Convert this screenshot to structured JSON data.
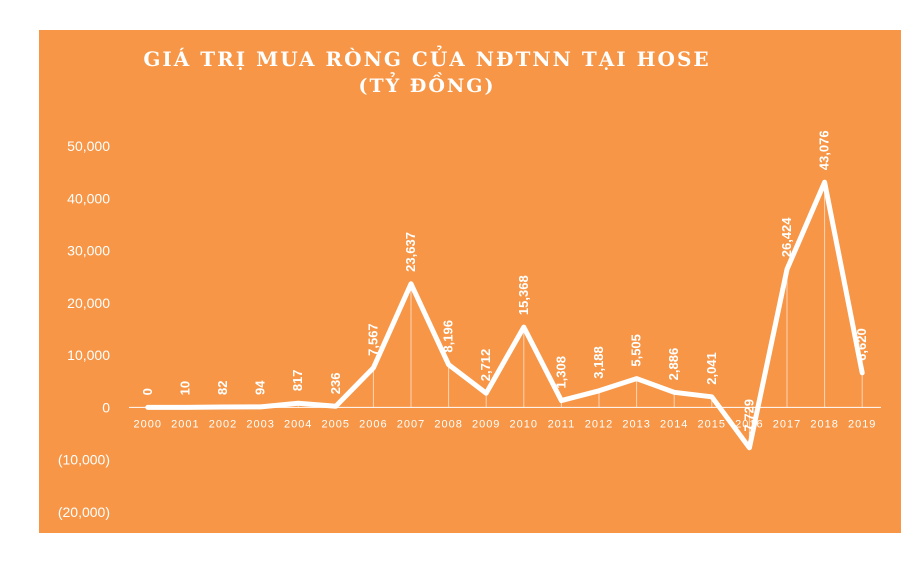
{
  "chart_data": {
    "type": "line",
    "title": "GIÁ TRỊ MUA RÒNG CỦA NĐTNN TẠI HOSE",
    "subtitle": "(TỶ ĐỒNG)",
    "categories": [
      "2000",
      "2001",
      "2002",
      "2003",
      "2004",
      "2005",
      "2006",
      "2007",
      "2008",
      "2009",
      "2010",
      "2011",
      "2012",
      "2013",
      "2014",
      "2015",
      "2016",
      "2017",
      "2018",
      "2019"
    ],
    "values": [
      0,
      10,
      82,
      94,
      817,
      236,
      7567,
      23637,
      8196,
      2712,
      15368,
      1308,
      3188,
      5505,
      2886,
      2041,
      -7729,
      26424,
      43076,
      6620
    ],
    "data_labels": [
      "0",
      "10",
      "82",
      "94",
      "817",
      "236",
      "7,567",
      "23,637",
      "8,196",
      "2,712",
      "15,368",
      "1,308",
      "3,188",
      "5,505",
      "2,886",
      "2,041",
      "-7,729",
      "26,424",
      "43,076",
      "6,620"
    ],
    "y_ticks": [
      50000,
      40000,
      30000,
      20000,
      10000,
      0,
      -10000,
      -20000
    ],
    "y_tick_labels": [
      "50,000",
      "40,000",
      "30,000",
      "20,000",
      "10,000",
      "0",
      "(10,000)",
      "(20,000)"
    ],
    "ylim": [
      -20000,
      50000
    ],
    "grid": false,
    "legend": "none",
    "line_color": "#ffffff",
    "background_color": "#f79646"
  }
}
